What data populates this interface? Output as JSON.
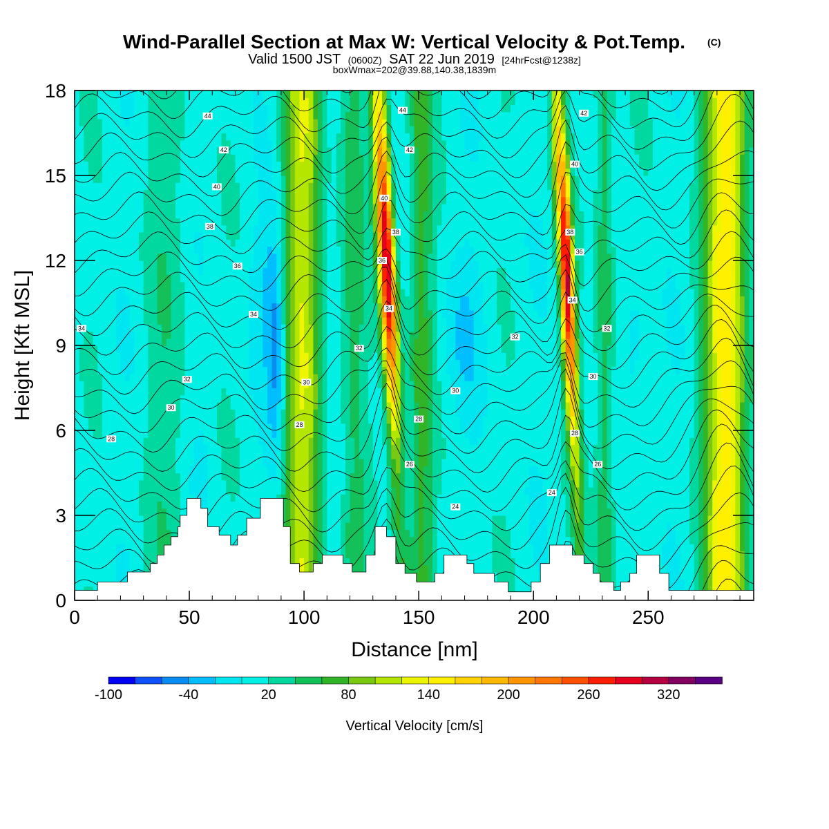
{
  "chart_data": {
    "type": "heatmap",
    "title": "Wind-Parallel Section at Max W: Vertical Velocity & Pot.Temp.",
    "title_mark": "(C)",
    "subtitle_parts": [
      "Valid 1500 JST",
      "(0600Z)",
      "SAT 22 Jun 2019",
      "[24hrFcst@1238z]"
    ],
    "subtitle2": "boxWmax=202@39.88,140.38,1839m",
    "xlabel": "Distance [nm]",
    "ylabel": "Height [Kft MSL]",
    "xlim": [
      0,
      296
    ],
    "ylim": [
      0,
      18
    ],
    "x_ticks": [
      "0",
      "50",
      "100",
      "150",
      "200",
      "250"
    ],
    "y_ticks": [
      "0",
      "3",
      "6",
      "9",
      "12",
      "15",
      "18"
    ],
    "colorbar": {
      "label": "Vertical Velocity [cm/s]",
      "tick_labels": [
        "-100",
        "-40",
        "20",
        "80",
        "140",
        "200",
        "260",
        "320"
      ],
      "levels": [
        -100,
        -80,
        -60,
        -40,
        -20,
        0,
        20,
        40,
        60,
        80,
        100,
        120,
        140,
        160,
        180,
        200,
        220,
        240,
        260,
        280,
        300,
        320,
        340,
        360
      ],
      "colors": [
        "#0000f5",
        "#0f50ff",
        "#0a8cf0",
        "#00beff",
        "#00e6f0",
        "#00f0e6",
        "#00d8a0",
        "#14c05a",
        "#32b428",
        "#78c814",
        "#b4e600",
        "#eef500",
        "#fff000",
        "#ffd200",
        "#ffb900",
        "#ff9600",
        "#ff7800",
        "#ff5000",
        "#ff1e00",
        "#e6001e",
        "#b40041",
        "#82005f",
        "#5a0082"
      ]
    },
    "background_w": 10,
    "updraft_bands": [
      {
        "x": 97,
        "w": 75,
        "width": 7
      },
      {
        "x": 103,
        "w": 50,
        "width": 6
      },
      {
        "x": 121,
        "w": 40,
        "width": 6
      },
      {
        "x": 136,
        "w": 300,
        "width": 3.5
      },
      {
        "x": 151,
        "w": 55,
        "width": 5
      },
      {
        "x": 214,
        "w": 300,
        "width": 3
      },
      {
        "x": 231,
        "w": 45,
        "width": 4
      },
      {
        "x": 284,
        "w": 140,
        "width": 9
      },
      {
        "x": 40,
        "w": 20,
        "width": 10
      }
    ],
    "downdraft_regions": [
      {
        "x": 88,
        "y": 9,
        "w": -60,
        "sx": 4,
        "sy": 4
      },
      {
        "x": 82,
        "y": 11,
        "w": -25,
        "sx": 6,
        "sy": 2.5
      },
      {
        "x": 118,
        "y": 5,
        "w": -25,
        "sx": 6,
        "sy": 1.8
      },
      {
        "x": 170,
        "y": 9.5,
        "w": -25,
        "sx": 10,
        "sy": 3
      },
      {
        "x": 212,
        "y": 14,
        "w": -80,
        "sx": 1.2,
        "sy": 3
      },
      {
        "x": 244,
        "y": 9,
        "w": -25,
        "sx": 5,
        "sy": 2.5
      },
      {
        "x": 55,
        "y": 4.5,
        "w": -20,
        "sx": 3,
        "sy": 1.5
      }
    ],
    "terrain": [
      [
        0,
        0.35
      ],
      [
        10,
        0.35
      ],
      [
        10,
        0.65
      ],
      [
        23,
        0.65
      ],
      [
        23,
        1.0
      ],
      [
        33,
        1.0
      ],
      [
        33,
        1.3
      ],
      [
        36,
        1.3
      ],
      [
        36,
        1.6
      ],
      [
        39,
        1.6
      ],
      [
        39,
        1.95
      ],
      [
        42,
        1.95
      ],
      [
        42,
        2.25
      ],
      [
        45,
        2.25
      ],
      [
        45,
        2.6
      ],
      [
        46,
        2.6
      ],
      [
        46,
        3.0
      ],
      [
        49,
        3.0
      ],
      [
        49,
        3.6
      ],
      [
        55,
        3.6
      ],
      [
        55,
        3.25
      ],
      [
        58,
        3.25
      ],
      [
        58,
        2.6
      ],
      [
        63,
        2.6
      ],
      [
        63,
        2.3
      ],
      [
        68,
        2.3
      ],
      [
        68,
        1.95
      ],
      [
        71,
        1.95
      ],
      [
        71,
        2.3
      ],
      [
        75,
        2.3
      ],
      [
        75,
        2.9
      ],
      [
        81,
        2.9
      ],
      [
        81,
        3.6
      ],
      [
        91,
        3.6
      ],
      [
        91,
        2.6
      ],
      [
        94,
        2.6
      ],
      [
        94,
        1.3
      ],
      [
        98,
        1.3
      ],
      [
        98,
        1.0
      ],
      [
        104,
        1.0
      ],
      [
        104,
        1.3
      ],
      [
        108,
        1.3
      ],
      [
        108,
        1.6
      ],
      [
        117,
        1.6
      ],
      [
        117,
        1.3
      ],
      [
        121,
        1.3
      ],
      [
        121,
        1.0
      ],
      [
        127,
        1.0
      ],
      [
        127,
        1.6
      ],
      [
        131,
        1.6
      ],
      [
        131,
        2.6
      ],
      [
        136,
        2.6
      ],
      [
        136,
        2.25
      ],
      [
        140,
        2.25
      ],
      [
        140,
        1.3
      ],
      [
        144,
        1.3
      ],
      [
        144,
        0.95
      ],
      [
        149,
        0.95
      ],
      [
        149,
        0.65
      ],
      [
        157,
        0.65
      ],
      [
        157,
        0.95
      ],
      [
        161,
        0.95
      ],
      [
        161,
        1.6
      ],
      [
        171,
        1.6
      ],
      [
        171,
        1.3
      ],
      [
        174,
        1.3
      ],
      [
        174,
        0.95
      ],
      [
        183,
        0.95
      ],
      [
        183,
        0.65
      ],
      [
        189,
        0.65
      ],
      [
        189,
        0.3
      ],
      [
        199,
        0.3
      ],
      [
        199,
        0.65
      ],
      [
        203,
        0.65
      ],
      [
        203,
        1.3
      ],
      [
        207,
        1.3
      ],
      [
        207,
        1.95
      ],
      [
        217,
        1.95
      ],
      [
        217,
        1.6
      ],
      [
        222,
        1.6
      ],
      [
        222,
        1.3
      ],
      [
        226,
        1.3
      ],
      [
        226,
        0.95
      ],
      [
        229,
        0.95
      ],
      [
        229,
        0.65
      ],
      [
        235,
        0.65
      ],
      [
        235,
        0.35
      ],
      [
        238,
        0.35
      ],
      [
        238,
        0.65
      ],
      [
        242,
        0.65
      ],
      [
        242,
        0.95
      ],
      [
        245,
        0.95
      ],
      [
        245,
        1.6
      ],
      [
        255,
        1.6
      ],
      [
        255,
        0.95
      ],
      [
        259,
        0.95
      ],
      [
        259,
        0.35
      ],
      [
        296,
        0.35
      ]
    ],
    "theta_contours": {
      "min": 18,
      "max": 46,
      "step": 1,
      "labels": [
        {
          "text": "44",
          "x": 58,
          "y": 17.1
        },
        {
          "text": "42",
          "x": 65,
          "y": 15.9
        },
        {
          "text": "40",
          "x": 62,
          "y": 14.6
        },
        {
          "text": "38",
          "x": 59,
          "y": 13.2
        },
        {
          "text": "36",
          "x": 71,
          "y": 11.8
        },
        {
          "text": "34",
          "x": 78,
          "y": 10.1
        },
        {
          "text": "34",
          "x": 3,
          "y": 9.6
        },
        {
          "text": "32",
          "x": 49,
          "y": 7.8
        },
        {
          "text": "30",
          "x": 42,
          "y": 6.8
        },
        {
          "text": "28",
          "x": 16,
          "y": 5.7
        },
        {
          "text": "30",
          "x": 101,
          "y": 7.7
        },
        {
          "text": "32",
          "x": 124,
          "y": 8.9
        },
        {
          "text": "28",
          "x": 98,
          "y": 6.2
        },
        {
          "text": "44",
          "x": 143,
          "y": 17.3
        },
        {
          "text": "42",
          "x": 146,
          "y": 15.9
        },
        {
          "text": "40",
          "x": 135,
          "y": 14.2
        },
        {
          "text": "38",
          "x": 140,
          "y": 13.0
        },
        {
          "text": "36",
          "x": 134,
          "y": 12.0
        },
        {
          "text": "34",
          "x": 137,
          "y": 10.3
        },
        {
          "text": "32",
          "x": 192,
          "y": 9.3
        },
        {
          "text": "30",
          "x": 166,
          "y": 7.4
        },
        {
          "text": "28",
          "x": 150,
          "y": 6.4
        },
        {
          "text": "26",
          "x": 146,
          "y": 4.8
        },
        {
          "text": "24",
          "x": 166,
          "y": 3.3
        },
        {
          "text": "24",
          "x": 208,
          "y": 3.8
        },
        {
          "text": "42",
          "x": 222,
          "y": 17.2
        },
        {
          "text": "40",
          "x": 218,
          "y": 15.4
        },
        {
          "text": "38",
          "x": 216,
          "y": 13.0
        },
        {
          "text": "36",
          "x": 220,
          "y": 12.3
        },
        {
          "text": "34",
          "x": 217,
          "y": 10.6
        },
        {
          "text": "32",
          "x": 232,
          "y": 9.6
        },
        {
          "text": "30",
          "x": 226,
          "y": 7.9
        },
        {
          "text": "28",
          "x": 218,
          "y": 5.9
        },
        {
          "text": "26",
          "x": 228,
          "y": 4.8
        }
      ]
    }
  }
}
